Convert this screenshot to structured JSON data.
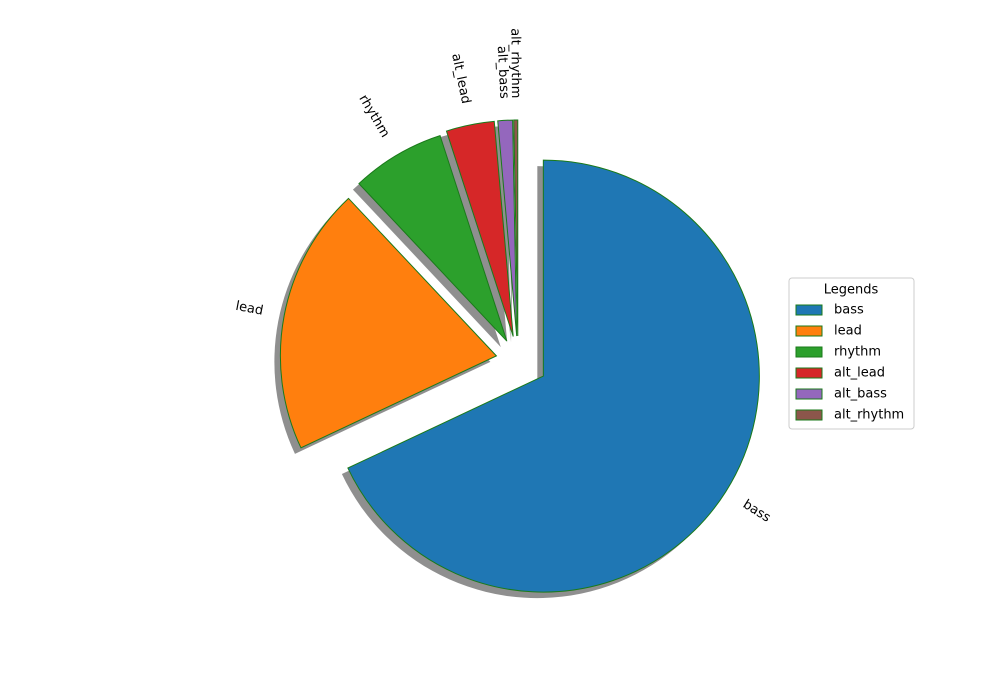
{
  "chart_data": {
    "type": "pie",
    "categories": [
      "bass",
      "lead",
      "rhythm",
      "alt_lead",
      "alt_bass",
      "alt_rhythm"
    ],
    "values": [
      68,
      20,
      7,
      3.6,
      1.1,
      0.3
    ],
    "colors": [
      "#1f77b4",
      "#ff7f0e",
      "#2ca02c",
      "#d62728",
      "#9467bd",
      "#8c564b"
    ],
    "edge_color": "#1a7a1a",
    "legend_title": "Legends",
    "legend_position": "right"
  }
}
